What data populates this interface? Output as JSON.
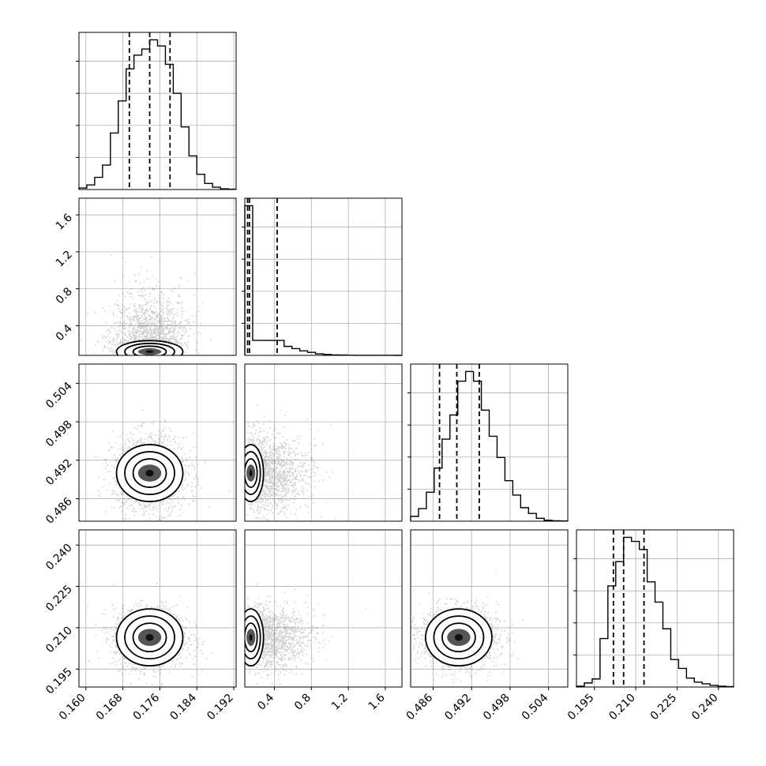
{
  "chart_data": {
    "type": "corner",
    "dimensions": [
      {
        "ticks": [
          0.16,
          0.168,
          0.176,
          0.184,
          0.192
        ],
        "tick_labels": [
          "0.160",
          "0.168",
          "0.176",
          "0.184",
          "0.192"
        ],
        "range": [
          0.1585,
          0.1925
        ]
      },
      {
        "ticks": [
          0.4,
          0.8,
          1.2,
          1.6
        ],
        "tick_labels": [
          "0.4",
          "0.8",
          "1.2",
          "1.6"
        ],
        "range": [
          0.08,
          1.78
        ]
      },
      {
        "ticks": [
          0.486,
          0.492,
          0.498,
          0.504
        ],
        "tick_labels": [
          "0.486",
          "0.492",
          "0.498",
          "0.504"
        ],
        "range": [
          0.4825,
          0.507
        ]
      },
      {
        "ticks": [
          0.195,
          0.21,
          0.225,
          0.24
        ],
        "tick_labels": [
          "0.195",
          "0.210",
          "0.225",
          "0.240"
        ],
        "range": [
          0.1885,
          0.2455
        ]
      }
    ],
    "histograms": [
      {
        "counts": [
          0.01,
          0.03,
          0.08,
          0.16,
          0.37,
          0.58,
          0.79,
          0.88,
          0.92,
          0.98,
          0.94,
          0.82,
          0.63,
          0.41,
          0.22,
          0.1,
          0.04,
          0.015,
          0.005,
          0.002
        ],
        "quantiles": [
          0.1694,
          0.1738,
          0.1782
        ]
      },
      {
        "counts": [
          1.0,
          0.1,
          0.1,
          0.1,
          0.1,
          0.06,
          0.045,
          0.03,
          0.02,
          0.01,
          0.006,
          0.003,
          0.002,
          0.001,
          0.0005,
          0.0003,
          0.0002,
          0.0001,
          0.0001,
          0.0
        ],
        "quantiles": [
          0.11,
          0.13,
          0.43
        ]
      },
      {
        "counts": [
          0.05,
          0.13,
          0.3,
          0.55,
          0.85,
          1.1,
          1.45,
          1.55,
          1.45,
          1.15,
          0.88,
          0.66,
          0.42,
          0.27,
          0.14,
          0.08,
          0.03,
          0.01,
          0.005,
          0.002
        ],
        "quantiles": [
          0.487,
          0.4897,
          0.4932
        ]
      },
      {
        "counts": [
          0.01,
          0.05,
          0.1,
          0.6,
          1.25,
          1.55,
          1.85,
          1.8,
          1.7,
          1.3,
          1.05,
          0.72,
          0.34,
          0.23,
          0.11,
          0.06,
          0.04,
          0.02,
          0.01,
          0.005
        ],
        "quantiles": [
          0.2019,
          0.2056,
          0.213
        ]
      }
    ],
    "contour_levels": 4,
    "grid": true
  }
}
